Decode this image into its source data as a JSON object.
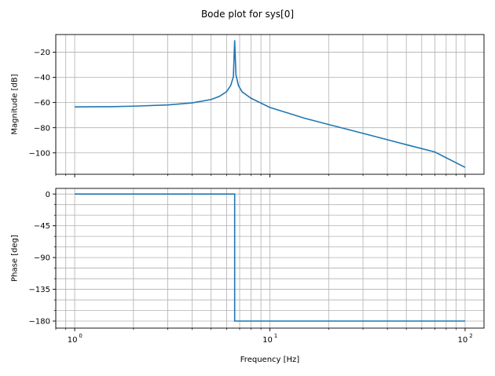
{
  "title": "Bode plot for sys[0]",
  "colors": {
    "line": "#1f77b4",
    "grid": "#b0b0b0",
    "axes": "#000000"
  },
  "chart_data": [
    {
      "type": "line",
      "subplot": "magnitude",
      "xlabel": "",
      "ylabel": "Magnitude [dB]",
      "xscale": "log",
      "xlim": [
        0.8,
        125
      ],
      "ylim": [
        -117,
        -6
      ],
      "yticks": [
        -100,
        -80,
        -60,
        -40,
        -20
      ],
      "ytick_labels": [
        "−100",
        "−80",
        "−60",
        "−40",
        "−20"
      ],
      "grid": true,
      "series": [
        {
          "x": [
            1,
            1.5,
            2,
            3,
            4,
            5,
            5.5,
            6,
            6.3,
            6.5,
            6.6,
            6.7,
            6.9,
            7.2,
            8,
            10,
            15,
            20,
            30,
            50,
            70,
            100
          ],
          "y": [
            -63.5,
            -63.3,
            -62.9,
            -61.9,
            -60.3,
            -57.6,
            -55.2,
            -51.4,
            -46.5,
            -39.5,
            -10.5,
            -38.0,
            -46.5,
            -51.5,
            -56.6,
            -63.9,
            -72.4,
            -77.5,
            -84.5,
            -93.5,
            -99.3,
            -111.5
          ]
        }
      ]
    },
    {
      "type": "line",
      "subplot": "phase",
      "xlabel": "Frequency [Hz]",
      "ylabel": "Phase [deg]",
      "xscale": "log",
      "xlim": [
        0.8,
        125
      ],
      "ylim": [
        -190,
        8
      ],
      "yticks": [
        -180,
        -135,
        -90,
        -45,
        0
      ],
      "ytick_labels": [
        "−180",
        "−135",
        "−90",
        "−45",
        "0"
      ],
      "minor_yticks": [
        -165,
        -150,
        -120,
        -105,
        -75,
        -60,
        -30,
        -15
      ],
      "xticks": [
        1,
        10,
        100
      ],
      "xtick_labels": [
        "10",
        "10",
        "10"
      ],
      "xtick_exponents": [
        "0",
        "1",
        "2"
      ],
      "grid": true,
      "series": [
        {
          "x": [
            1,
            6.6,
            6.6,
            100
          ],
          "y": [
            0,
            0,
            -180,
            -180
          ]
        }
      ]
    }
  ]
}
